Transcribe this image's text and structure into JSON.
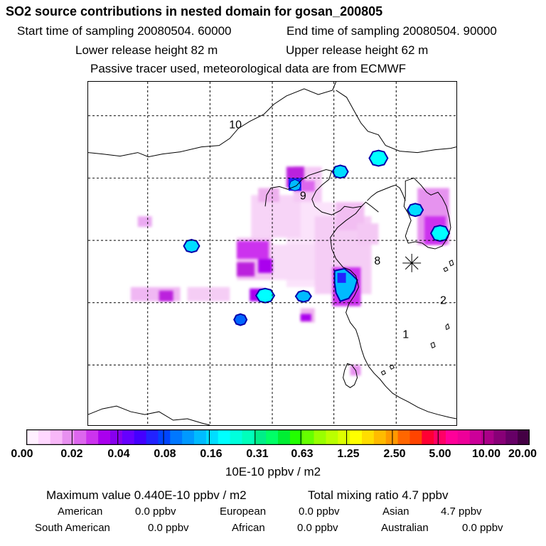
{
  "header": {
    "title": "SO2 source contributions in nested domain for gosan_200805",
    "start_time": "Start time of sampling 20080504. 60000",
    "end_time": "End time of sampling 20080504. 90000",
    "lower_release": "Lower release height   82 m",
    "upper_release": "Upper release height   62 m",
    "tracer_note": "Passive tracer used, meteorological data are from ECMWF"
  },
  "map": {
    "region_labels": [
      "10",
      "9",
      "8",
      "2",
      "1"
    ],
    "receptor_marker": "receptor-star"
  },
  "colorbar": {
    "ticks": [
      "0.00",
      "0.02",
      "0.04",
      "0.08",
      "0.16",
      "0.31",
      "0.63",
      "1.25",
      "2.50",
      "5.00",
      "10.00",
      "20.00"
    ],
    "colors": [
      "#fff0ff",
      "#ffd8ff",
      "#f8b8f8",
      "#e890f0",
      "#dd66ee",
      "#cc33ee",
      "#aa00ee",
      "#8800ee",
      "#6600ff",
      "#4400ff",
      "#2222ff",
      "#0044ff",
      "#0077ff",
      "#0099ff",
      "#00bbff",
      "#00ddff",
      "#00ffff",
      "#00ffdd",
      "#00ffbb",
      "#00ee88",
      "#00ff66",
      "#00ee33",
      "#22ff00",
      "#66ff00",
      "#99ff00",
      "#bbff00",
      "#ddff00",
      "#ffff00",
      "#ffdd00",
      "#ffbb00",
      "#ff9900",
      "#ff6600",
      "#ff4400",
      "#ff0033",
      "#ff0066",
      "#ff0099",
      "#ee0099",
      "#cc0099",
      "#aa0088",
      "#880077",
      "#660066",
      "#440044"
    ],
    "units": "10E-10 ppbv / m2"
  },
  "footer": {
    "max_label": "Maximum value  0.440E-10 ppbv / m2",
    "total_label": "Total mixing ratio       4.7 ppbv",
    "american": "American",
    "american_val": "0.0 ppbv",
    "european": "European",
    "european_val": "0.0 ppbv",
    "asian": "Asian",
    "asian_val": "4.7 ppbv",
    "south_american": "South American",
    "south_american_val": "0.0 ppbv",
    "african": "African",
    "african_val": "0.0 ppbv",
    "australian": "Australian",
    "australian_val": "0.0 ppbv"
  }
}
